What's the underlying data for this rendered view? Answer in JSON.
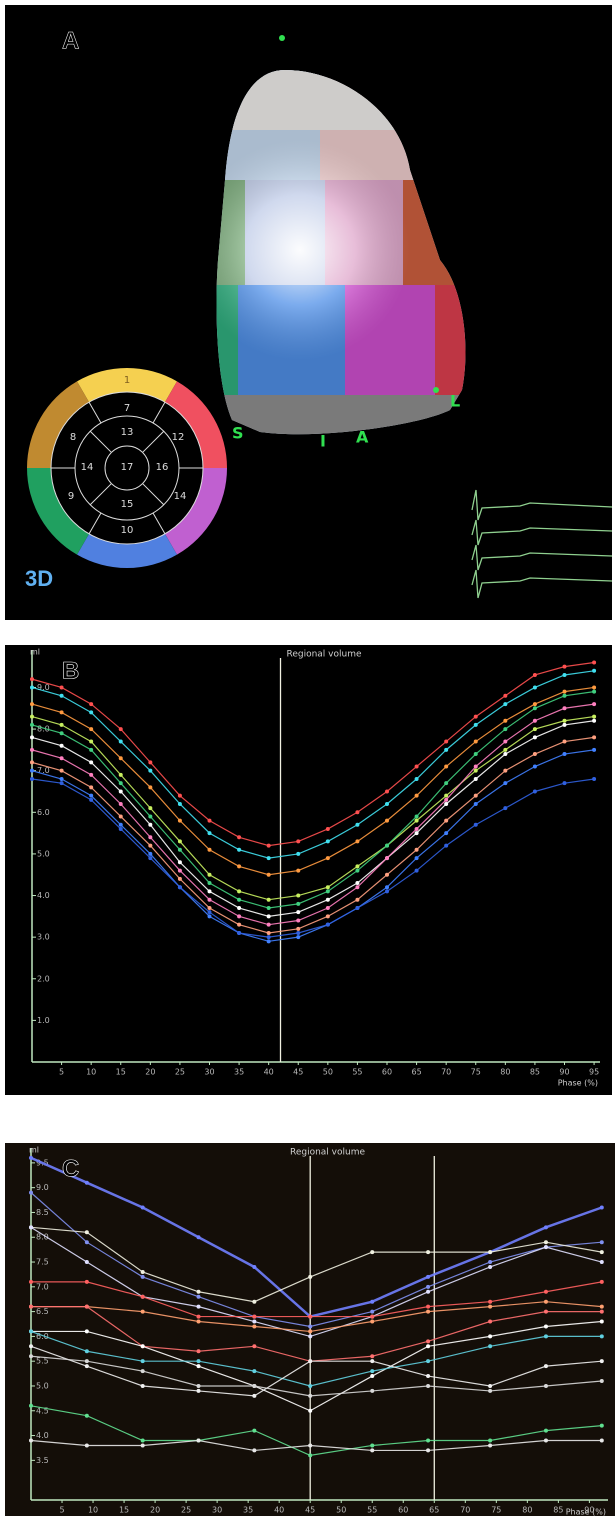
{
  "panel_a": {
    "label": "A",
    "badge": "3D",
    "markers": [
      "S",
      "I",
      "A",
      "L"
    ],
    "bullseye": [
      "1",
      "7",
      "13",
      "12",
      "8",
      "14",
      "17",
      "16",
      "9",
      "15",
      "14",
      "10"
    ]
  },
  "chart_data": [
    {
      "type": "line",
      "panel_label": "B",
      "title": "Regional volume",
      "x_label": "Phase (%)",
      "y_label": "ml",
      "x": [
        0,
        5,
        10,
        15,
        20,
        25,
        30,
        35,
        40,
        45,
        50,
        55,
        60,
        65,
        70,
        75,
        80,
        85,
        90,
        95
      ],
      "xlim": [
        0,
        96
      ],
      "xticks": [
        5,
        10,
        15,
        20,
        25,
        30,
        35,
        40,
        45,
        50,
        55,
        60,
        65,
        70,
        75,
        80,
        85,
        90,
        95
      ],
      "ylim": [
        0,
        9.9
      ],
      "yticks": [
        {
          "value": 1,
          "label": "1.0"
        },
        {
          "value": 2,
          "label": "2.0"
        },
        {
          "value": 3,
          "label": "3.0"
        },
        {
          "value": 4,
          "label": "4.0"
        },
        {
          "value": 5,
          "label": "5.0"
        },
        {
          "value": 6,
          "label": "6.0"
        },
        {
          "value": 7,
          "label": "7.0"
        },
        {
          "value": 8,
          "label": "8.0"
        },
        {
          "value": 9,
          "label": "9.0"
        }
      ],
      "vlines": [
        42
      ],
      "series": [
        {
          "color": "#ff5050",
          "values": [
            9.2,
            9.0,
            8.6,
            8.0,
            7.2,
            6.4,
            5.8,
            5.4,
            5.2,
            5.3,
            5.6,
            6.0,
            6.5,
            7.1,
            7.7,
            8.3,
            8.8,
            9.3,
            9.5,
            9.6
          ]
        },
        {
          "color": "#40e0f0",
          "values": [
            9.0,
            8.8,
            8.4,
            7.7,
            7.0,
            6.2,
            5.5,
            5.1,
            4.9,
            5.0,
            5.3,
            5.7,
            6.2,
            6.8,
            7.5,
            8.1,
            8.6,
            9.0,
            9.3,
            9.4
          ]
        },
        {
          "color": "#ff9a40",
          "values": [
            8.6,
            8.4,
            8.0,
            7.3,
            6.6,
            5.8,
            5.1,
            4.7,
            4.5,
            4.6,
            4.9,
            5.3,
            5.8,
            6.4,
            7.1,
            7.7,
            8.2,
            8.6,
            8.9,
            9.0
          ]
        },
        {
          "color": "#c8f060",
          "values": [
            8.3,
            8.1,
            7.7,
            6.9,
            6.1,
            5.3,
            4.5,
            4.1,
            3.9,
            4.0,
            4.2,
            4.7,
            5.2,
            5.8,
            6.4,
            7.0,
            7.5,
            8.0,
            8.2,
            8.3
          ]
        },
        {
          "color": "#40d080",
          "values": [
            8.1,
            7.9,
            7.5,
            6.7,
            5.9,
            5.1,
            4.3,
            3.9,
            3.7,
            3.8,
            4.1,
            4.6,
            5.2,
            5.9,
            6.7,
            7.4,
            8.0,
            8.5,
            8.8,
            8.9
          ]
        },
        {
          "color": "#ffffff",
          "values": [
            7.8,
            7.6,
            7.2,
            6.5,
            5.7,
            4.8,
            4.1,
            3.7,
            3.5,
            3.6,
            3.9,
            4.3,
            4.9,
            5.5,
            6.2,
            6.8,
            7.4,
            7.8,
            8.1,
            8.2
          ]
        },
        {
          "color": "#ff80c0",
          "values": [
            7.5,
            7.3,
            6.9,
            6.2,
            5.4,
            4.6,
            3.9,
            3.5,
            3.3,
            3.4,
            3.7,
            4.2,
            4.9,
            5.6,
            6.3,
            7.1,
            7.7,
            8.2,
            8.5,
            8.6
          ]
        },
        {
          "color": "#ffa080",
          "values": [
            7.2,
            7.0,
            6.6,
            5.9,
            5.2,
            4.4,
            3.7,
            3.3,
            3.1,
            3.2,
            3.5,
            3.9,
            4.5,
            5.1,
            5.8,
            6.4,
            7.0,
            7.4,
            7.7,
            7.8
          ]
        },
        {
          "color": "#4080ff",
          "values": [
            7.0,
            6.8,
            6.4,
            5.7,
            5.0,
            4.2,
            3.5,
            3.1,
            2.9,
            3.0,
            3.3,
            3.7,
            4.2,
            4.9,
            5.5,
            6.2,
            6.7,
            7.1,
            7.4,
            7.5
          ]
        },
        {
          "color": "#3060e0",
          "values": [
            6.8,
            6.7,
            6.3,
            5.6,
            4.9,
            4.2,
            3.6,
            3.1,
            3.0,
            3.1,
            3.3,
            3.7,
            4.1,
            4.6,
            5.2,
            5.7,
            6.1,
            6.5,
            6.7,
            6.8
          ]
        }
      ]
    },
    {
      "type": "line",
      "panel_label": "C",
      "title": "Regional volume",
      "x_label": "Phase (%)",
      "y_label": "ml",
      "x": [
        0,
        9,
        18,
        27,
        36,
        45,
        55,
        64,
        74,
        83,
        92
      ],
      "xlim": [
        0,
        93
      ],
      "xticks": [
        5,
        10,
        15,
        20,
        25,
        30,
        35,
        40,
        45,
        50,
        55,
        60,
        65,
        70,
        75,
        80,
        85,
        90
      ],
      "ylim": [
        2.7,
        9.8
      ],
      "yticks": [
        {
          "value": 3.5,
          "label": "3.5"
        },
        {
          "value": 4,
          "label": "4.0"
        },
        4.5,
        {
          "value": 5,
          "label": "5.0"
        },
        5.5,
        {
          "value": 6,
          "label": "6.0"
        },
        6.5,
        {
          "value": 7,
          "label": "7.0"
        },
        7.5,
        {
          "value": 8,
          "label": "8.0"
        },
        8.5,
        {
          "value": 9,
          "label": "9.0"
        },
        9.5
      ],
      "vlines": [
        45,
        65
      ],
      "series": [
        {
          "color": "#7080ff",
          "values": [
            9.6,
            9.1,
            8.6,
            8.0,
            7.4,
            6.4,
            6.7,
            7.2,
            7.7,
            8.2,
            8.6
          ]
        },
        {
          "color": "#8090f0",
          "values": [
            8.9,
            7.9,
            7.2,
            6.8,
            6.4,
            6.2,
            6.5,
            7.0,
            7.5,
            7.8,
            7.9
          ]
        },
        {
          "color": "#f0f0e0",
          "values": [
            8.2,
            8.1,
            7.3,
            6.9,
            6.7,
            7.2,
            7.7,
            7.7,
            7.7,
            7.9,
            7.7
          ]
        },
        {
          "color": "#e0e0ff",
          "values": [
            8.2,
            7.5,
            6.8,
            6.6,
            6.3,
            6.0,
            6.4,
            6.9,
            7.4,
            7.8,
            7.5
          ]
        },
        {
          "color": "#ff6060",
          "values": [
            7.1,
            7.1,
            6.8,
            6.4,
            6.4,
            6.4,
            6.4,
            6.6,
            6.7,
            6.9,
            7.1
          ]
        },
        {
          "color": "#ffa070",
          "values": [
            6.6,
            6.6,
            6.5,
            6.3,
            6.2,
            6.1,
            6.3,
            6.5,
            6.6,
            6.7,
            6.6
          ]
        },
        {
          "color": "#ff7070",
          "values": [
            6.6,
            6.6,
            5.8,
            5.7,
            5.8,
            5.5,
            5.6,
            5.9,
            6.3,
            6.5,
            6.5
          ]
        },
        {
          "color": "#ffffff",
          "values": [
            6.1,
            6.1,
            5.8,
            5.4,
            5.0,
            4.5,
            5.2,
            5.8,
            6.0,
            6.2,
            6.3
          ]
        },
        {
          "color": "#60d0e0",
          "values": [
            6.1,
            5.7,
            5.5,
            5.5,
            5.3,
            5.0,
            5.3,
            5.5,
            5.8,
            6.0,
            6.0
          ]
        },
        {
          "color": "#f0f0f0",
          "values": [
            5.8,
            5.4,
            5.0,
            4.9,
            4.8,
            5.5,
            5.5,
            5.2,
            5.0,
            5.4,
            5.5
          ]
        },
        {
          "color": "#d8d8d8",
          "values": [
            5.6,
            5.5,
            5.3,
            5.0,
            5.0,
            4.8,
            4.9,
            5.0,
            4.9,
            5.0,
            5.1
          ]
        },
        {
          "color": "#60e090",
          "values": [
            4.6,
            4.4,
            3.9,
            3.9,
            4.1,
            3.6,
            3.8,
            3.9,
            3.9,
            4.1,
            4.2
          ]
        },
        {
          "color": "#e8e8e8",
          "values": [
            3.9,
            3.8,
            3.8,
            3.9,
            3.7,
            3.8,
            3.7,
            3.7,
            3.8,
            3.9,
            3.9
          ]
        }
      ]
    }
  ]
}
